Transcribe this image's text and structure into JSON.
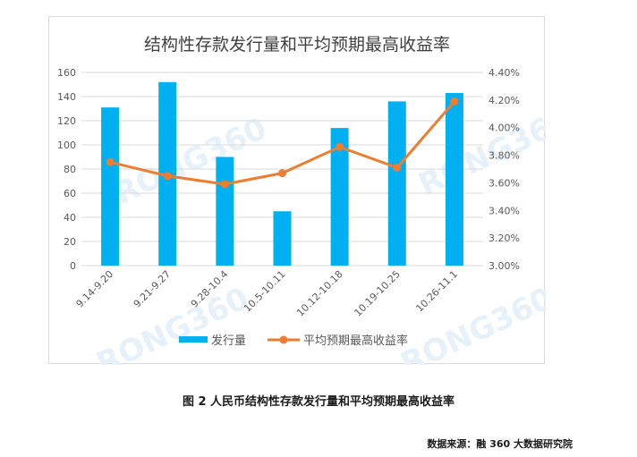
{
  "chart_data": {
    "type": "bar+line",
    "title": "结构性存款发行量和平均预期最高收益率",
    "categories": [
      "9.14-9.20",
      "9.21-9.27",
      "9.28-10.4",
      "10.5-10.11",
      "10.12-10.18",
      "10.19-10.25",
      "10.26-11.1"
    ],
    "series": [
      {
        "name": "发行量",
        "type": "bar",
        "axis": "left",
        "color": "#00b0f0",
        "values": [
          131,
          152,
          90,
          45,
          114,
          136,
          143
        ]
      },
      {
        "name": "平均预期最高收益率",
        "type": "line",
        "axis": "right",
        "color": "#ed7d31",
        "values": [
          3.75,
          3.65,
          3.59,
          3.67,
          3.86,
          3.71,
          4.19
        ]
      }
    ],
    "y_left": {
      "min": 0,
      "max": 160,
      "ticks": [
        "0",
        "20",
        "40",
        "60",
        "80",
        "100",
        "120",
        "140",
        "160"
      ]
    },
    "y_right": {
      "min": 3.0,
      "max": 4.4,
      "ticks": [
        "3.00%",
        "3.20%",
        "3.40%",
        "3.60%",
        "3.80%",
        "4.00%",
        "4.20%",
        "4.40%"
      ]
    },
    "grid": true,
    "legend_position": "bottom",
    "watermark": "RONG360"
  },
  "figure": {
    "caption": "图 2 人民币结构性存款发行量和平均预期最高收益率",
    "source": "数据来源：融 360 大数据研究院"
  },
  "colors": {
    "bar": "#00b0f0",
    "line": "#ed7d31",
    "grid": "#d9d9d9",
    "text": "#595959",
    "watermark": "#e6f1fa"
  }
}
